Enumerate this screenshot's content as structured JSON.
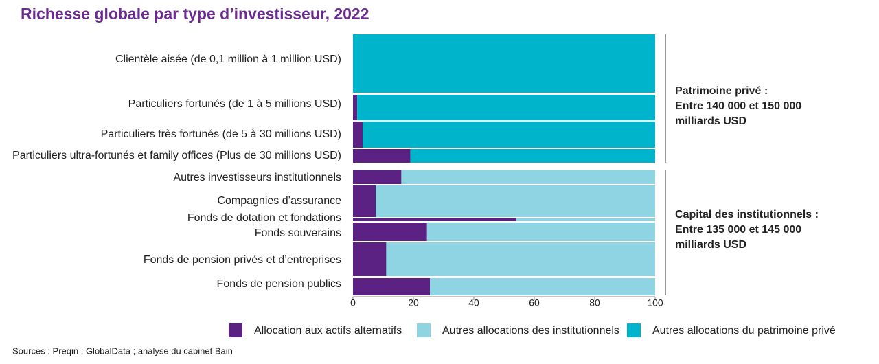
{
  "chart_data": {
    "type": "stacked_barh",
    "title": "Richesse globale par type d’investisseur, 2022",
    "categories": [
      "Clientèle aisée (de 0,1 million à 1 million USD)",
      "Particuliers fortunés (de 1 à 5 millions USD)",
      "Particuliers très fortunés (de 5 à 30 millions USD)",
      "Particuliers ultra-fortunés et family offices (Plus de 30 millions USD)",
      "Autres investisseurs institutionnels",
      "Compagnies d’assurance",
      "Fonds de dotation et fondations",
      "Fonds souverains",
      "Fonds de pension privés et d’entreprises",
      "Fonds de pension publics"
    ],
    "series": [
      {
        "name": "Allocation aux actifs alternatifs",
        "color": "#5b2283",
        "values": [
          0,
          1.4,
          3.2,
          19,
          16,
          7.5,
          54,
          24.5,
          11,
          25.5
        ]
      },
      {
        "name": "Autres allocations des institutionnels",
        "color": "#8fd4e2",
        "values": [
          null,
          null,
          null,
          null,
          84,
          92.5,
          46,
          75.5,
          89,
          74.5
        ]
      },
      {
        "name": "Autres allocations du patrimoine privé",
        "color": "#00b4cb",
        "values": [
          100,
          98.6,
          96.8,
          81,
          null,
          null,
          null,
          null,
          null,
          null
        ]
      }
    ],
    "xlim": [
      0,
      100
    ],
    "xticks": [
      0,
      20,
      40,
      60,
      80,
      100
    ],
    "annotations": [
      [
        "Patrimoine privé :",
        "Entre 140 000 et 150 000",
        "milliards USD"
      ],
      [
        "Capital des institutionnels :",
        "Entre 135 000 et 145 000",
        "milliards USD"
      ]
    ],
    "source": "Sources : Preqin ; GlobalData ; analyse du cabinet Bain"
  }
}
